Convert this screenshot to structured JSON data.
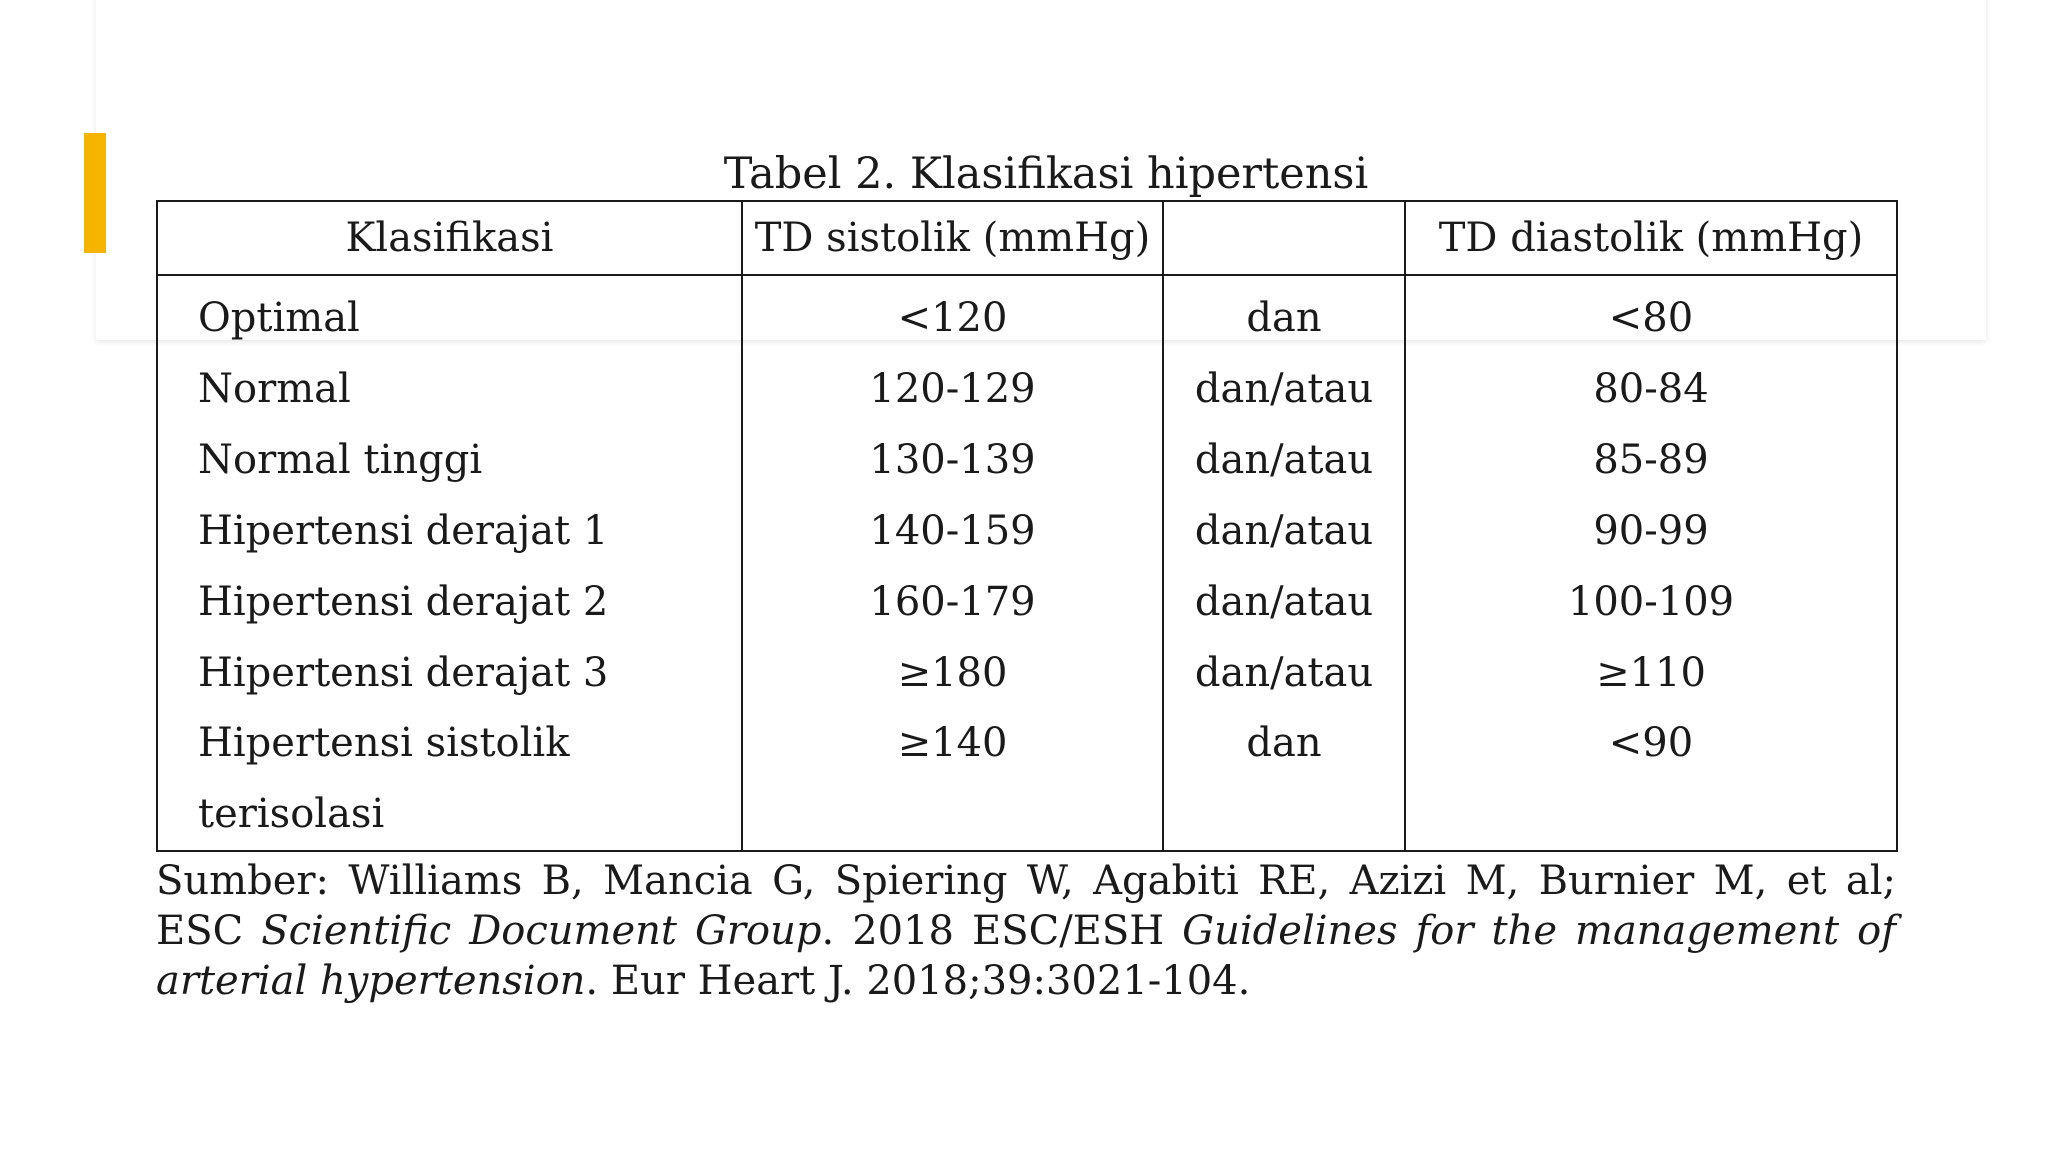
{
  "colors": {
    "accent": "#F4B400"
  },
  "table": {
    "title": "Tabel 2. Klasifikasi hipertensi",
    "headers": [
      "Klasifikasi",
      "TD sistolik (mmHg)",
      "",
      "TD diastolik (mmHg)"
    ],
    "rows": [
      {
        "klasifikasi": "Optimal",
        "sistolik": "<120",
        "operator": "dan",
        "diastolik": "<80"
      },
      {
        "klasifikasi": "Normal",
        "sistolik": "120-129",
        "operator": "dan/atau",
        "diastolik": "80-84"
      },
      {
        "klasifikasi": "Normal tinggi",
        "sistolik": "130-139",
        "operator": "dan/atau",
        "diastolik": "85-89"
      },
      {
        "klasifikasi": "Hipertensi derajat 1",
        "sistolik": "140-159",
        "operator": "dan/atau",
        "diastolik": "90-99"
      },
      {
        "klasifikasi": "Hipertensi derajat 2",
        "sistolik": "160-179",
        "operator": "dan/atau",
        "diastolik": "100-109"
      },
      {
        "klasifikasi": "Hipertensi derajat 3",
        "sistolik": "≥180",
        "operator": "dan/atau",
        "diastolik": "≥110"
      },
      {
        "klasifikasi": "Hipertensi sistolik",
        "klasifikasi_cont": "terisolasi",
        "sistolik": "≥140",
        "operator": "dan",
        "diastolik": "<90"
      }
    ]
  },
  "source": {
    "prefix": "Sumber: Williams B, Mancia G, Spiering W, Agabiti RE, Azizi M, Burnier M, et al; ESC ",
    "italic_1": "Scientific Document Group",
    "middle": ". 2018 ESC/ESH ",
    "italic_2": "Guidelines for the management of arterial hypertension",
    "suffix": ". Eur Heart J. 2018;39:3021-104."
  }
}
